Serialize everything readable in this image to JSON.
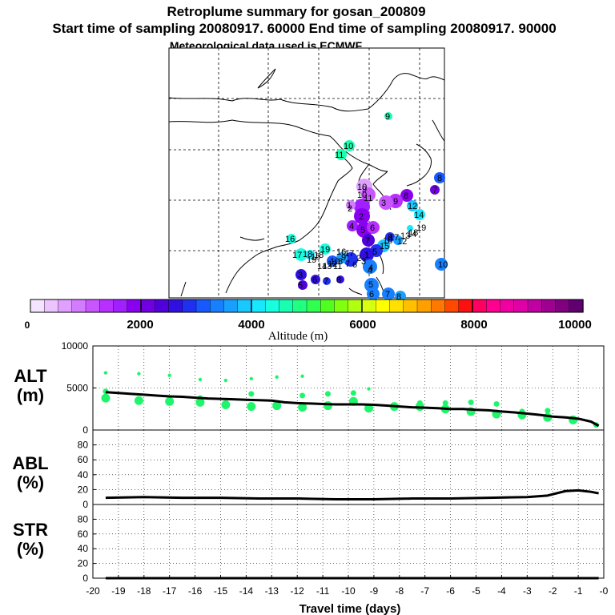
{
  "title": {
    "line1": "Retroplume summary for gosan_200809",
    "line2": "Start time of sampling 20080917. 60000     End time of sampling 20080917. 90000",
    "line3": "Meteorological data used is ECMWF"
  },
  "colorbar": {
    "label": "Altitude (m)",
    "ticks": [
      "0",
      "2000",
      "4000",
      "6000",
      "8000",
      "10000"
    ],
    "min": 0,
    "max": 10000,
    "colors": [
      "#f4e4ff",
      "#ecc4ff",
      "#e0a0ff",
      "#d47cff",
      "#c856ff",
      "#b830ff",
      "#a020ff",
      "#8a00f0",
      "#7000e0",
      "#5000d8",
      "#3010e0",
      "#2030f0",
      "#1858ff",
      "#1880ff",
      "#18a0ff",
      "#18c8ff",
      "#18e8ff",
      "#18ffe0",
      "#18ffb0",
      "#20ff80",
      "#30ff50",
      "#50ff20",
      "#80ff10",
      "#b0ff10",
      "#d8ff10",
      "#ffff00",
      "#ffe000",
      "#ffc000",
      "#ffa000",
      "#ff7800",
      "#ff4800",
      "#ff1010",
      "#ff0060",
      "#ff0090",
      "#f000a0",
      "#e000a8",
      "#c000a0",
      "#a00090",
      "#800080",
      "#600070"
    ]
  },
  "map": {
    "labels": [
      "9",
      "10",
      "11",
      "8",
      "7",
      "8",
      "9",
      "10",
      "12",
      "14",
      "1",
      "2",
      "3",
      "4",
      "5",
      "6",
      "7",
      "8",
      "9",
      "10",
      "11",
      "12",
      "13",
      "14",
      "15",
      "16",
      "17",
      "18",
      "19",
      "1",
      "2",
      "3",
      "4",
      "5",
      "6",
      "7",
      "8",
      "9",
      "10",
      "16",
      "17",
      "18",
      "19",
      "4",
      "5",
      "6",
      "7",
      "8",
      "10",
      "11",
      "12",
      "13",
      "14",
      "15",
      "16",
      "17",
      "18",
      "19",
      "2",
      "3",
      "5",
      "6",
      "7",
      "8"
    ]
  },
  "chart_data": [
    {
      "type": "line",
      "panel_label": "ALT\n(m)",
      "ylabel_lines": [
        "ALT",
        "(m)"
      ],
      "ylim": [
        0,
        10000
      ],
      "y_ticks": [
        "0",
        "5000",
        "10000"
      ],
      "x": [
        -19.5,
        -19,
        -18.5,
        -18,
        -17.5,
        -17,
        -16.5,
        -16,
        -15.5,
        -15,
        -14.5,
        -14,
        -13.5,
        -13,
        -12.5,
        -12,
        -11.5,
        -11,
        -10.5,
        -10,
        -9.5,
        -9,
        -8.5,
        -8,
        -7.5,
        -7,
        -6.5,
        -6,
        -5.5,
        -5,
        -4.5,
        -4,
        -3.5,
        -3,
        -2.5,
        -2,
        -1.5,
        -1,
        -0.5,
        -0.2
      ],
      "series": [
        {
          "name": "mean altitude",
          "values": [
            4500,
            4400,
            4300,
            4200,
            4100,
            4000,
            3950,
            3850,
            3750,
            3700,
            3650,
            3600,
            3550,
            3500,
            3300,
            3200,
            3150,
            3100,
            3050,
            3050,
            3050,
            3000,
            2900,
            2800,
            2700,
            2650,
            2600,
            2500,
            2500,
            2400,
            2350,
            2200,
            2100,
            1950,
            1800,
            1600,
            1500,
            1350,
            1000,
            500
          ]
        }
      ],
      "clusters_upper": {
        "x": [
          -19.5,
          -18.2,
          -17,
          -15.8,
          -14.8,
          -13.8,
          -12.8,
          -11.8,
          -9.2
        ],
        "y": [
          6800,
          6700,
          6500,
          6000,
          5900,
          6100,
          6300,
          6400,
          4900
        ]
      },
      "clusters_lower": {
        "x": [
          -19.5,
          -18.2,
          -17,
          -15.8,
          -14.8,
          -13.8,
          -12.8,
          -11.8,
          -10.8,
          -9.8,
          -9.2,
          -8.2,
          -7.2,
          -6.2,
          -5.2,
          -4.2,
          -3.2,
          -2.2,
          -1.2,
          -0.3
        ],
        "y": [
          3800,
          3500,
          3400,
          3300,
          3000,
          2800,
          2900,
          2700,
          2900,
          3400,
          2600,
          2800,
          2800,
          2500,
          2200,
          1900,
          1800,
          1500,
          1200,
          600
        ]
      },
      "clusters_upper2": {
        "x": [
          -19.5,
          -15.8,
          -13.8,
          -11.8,
          -10.8,
          -9.8,
          -7.2,
          -6.2,
          -5.2,
          -4.2,
          -3.2,
          -2.2
        ],
        "y": [
          4600,
          3800,
          4300,
          4100,
          4300,
          4400,
          3200,
          3200,
          3300,
          3100,
          2200,
          2300
        ]
      }
    },
    {
      "type": "line",
      "ylabel_lines": [
        "ABL",
        "(%)"
      ],
      "ylim": [
        0,
        100
      ],
      "y_ticks": [
        "0",
        "20",
        "40",
        "60",
        "80"
      ],
      "x": [
        -19.5,
        -18,
        -16.5,
        -15,
        -13.5,
        -12,
        -10.5,
        -9,
        -7.5,
        -6,
        -4.5,
        -3,
        -2.2,
        -1.5,
        -1,
        -0.5,
        -0.2
      ],
      "series": [
        {
          "name": "ABL fraction",
          "values": [
            9,
            10,
            9,
            9,
            8,
            8,
            7,
            7,
            8,
            8,
            9,
            10,
            12,
            18,
            19,
            17,
            15
          ]
        }
      ]
    },
    {
      "type": "line",
      "ylabel_lines": [
        "STR",
        "(%)"
      ],
      "ylim": [
        0,
        100
      ],
      "y_ticks": [
        "0",
        "20",
        "40",
        "60",
        "80"
      ],
      "x": [
        -19.5,
        -15,
        -10,
        -5,
        -0.2
      ],
      "series": [
        {
          "name": "STR fraction",
          "values": [
            0,
            0,
            0,
            0,
            0
          ]
        }
      ]
    }
  ],
  "xaxis": {
    "label": "Travel time (days)",
    "min": -20,
    "max": 0,
    "ticks": [
      "-20",
      "-19",
      "-18",
      "-17",
      "-16",
      "-15",
      "-14",
      "-13",
      "-12",
      "-11",
      "-10",
      "-9",
      "-8",
      "-7",
      "-6",
      "-5",
      "-4",
      "-3",
      "-2",
      "-1",
      "-0"
    ]
  },
  "colors": {
    "line": "#000000",
    "cluster": "#1ef56a",
    "grid": "#000000"
  }
}
